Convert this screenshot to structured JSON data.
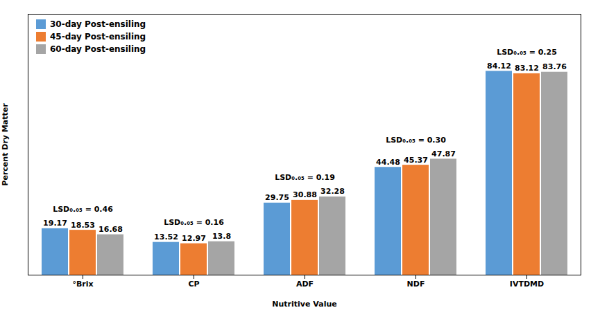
{
  "chart_data": {
    "type": "bar",
    "categories": [
      "°Brix",
      "CP",
      "ADF",
      "NDF",
      "IVTDMD"
    ],
    "series": [
      {
        "name": "30-day Post-ensiling",
        "color": "#5B9BD5",
        "values": [
          19.17,
          13.52,
          29.75,
          44.48,
          84.12
        ]
      },
      {
        "name": "45-day Post-ensiling",
        "color": "#ED7D31",
        "values": [
          18.53,
          12.97,
          30.88,
          45.37,
          83.12
        ]
      },
      {
        "name": "60-day Post-ensiling",
        "color": "#A5A5A5",
        "values": [
          16.68,
          13.8,
          32.28,
          47.87,
          83.76
        ]
      }
    ],
    "xlabel": "Nutritive Value",
    "ylabel": "Percent Dry Matter",
    "ylim": [
      0,
      107.6736
    ],
    "yticks": [],
    "tick_labels": "x",
    "data_labels": true,
    "legend": "upper left",
    "annotations": [
      {
        "text": "LSD₀.₀₅ = 0.46",
        "category": "°Brix"
      },
      {
        "text": "LSD₀.₀₅ = 0.16",
        "category": "CP"
      },
      {
        "text": "LSD₀.₀₅ = 0.19",
        "category": "ADF"
      },
      {
        "text": "LSD₀.₀₅ = 0.30",
        "category": "NDF"
      },
      {
        "text": "LSD₀.₀₅ = 0.25",
        "category": "IVTDMD"
      }
    ]
  }
}
